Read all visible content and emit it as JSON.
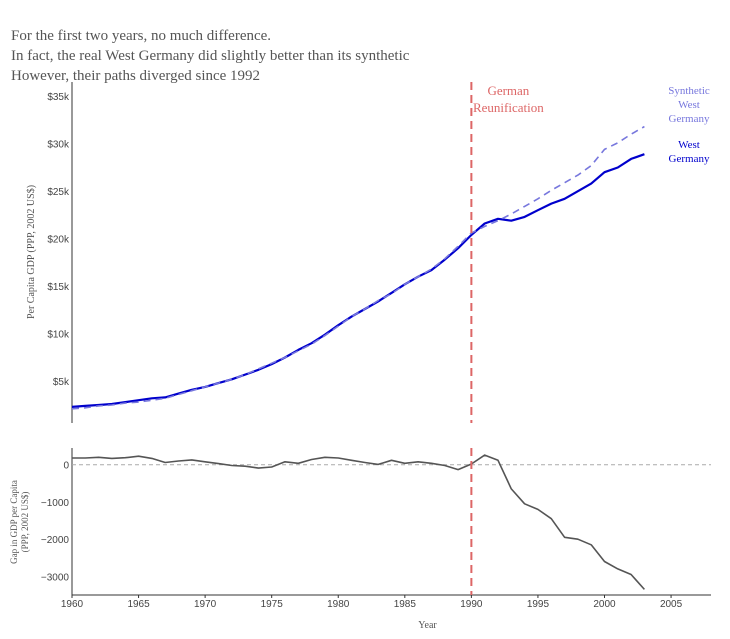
{
  "title_lines": [
    "For the first two years, no much difference.",
    "In fact, the real West Germany did slightly better than its synthetic",
    "However, their paths diverged since 1992"
  ],
  "chart_data": [
    {
      "type": "line",
      "xlabel": "",
      "ylabel": "Per Capita GDP (PPP, 2002 US$)",
      "xlim": [
        1960,
        2008
      ],
      "ylim": [
        600,
        36500
      ],
      "yticks": [
        5000,
        10000,
        15000,
        20000,
        25000,
        30000,
        35000
      ],
      "ytick_labels": [
        "$5k",
        "$10k",
        "$15k",
        "$20k",
        "$25k",
        "$30k",
        "$35k"
      ],
      "x": [
        1960,
        1961,
        1962,
        1963,
        1964,
        1965,
        1966,
        1967,
        1968,
        1969,
        1970,
        1971,
        1972,
        1973,
        1974,
        1975,
        1976,
        1977,
        1978,
        1979,
        1980,
        1981,
        1982,
        1983,
        1984,
        1985,
        1986,
        1987,
        1988,
        1989,
        1990,
        1991,
        1992,
        1993,
        1994,
        1995,
        1996,
        1997,
        1998,
        1999,
        2000,
        2001,
        2002,
        2003
      ],
      "series": [
        {
          "name": "West Germany",
          "color": "#0000cc",
          "dash": "solid",
          "values": [
            2300,
            2400,
            2500,
            2600,
            2800,
            3000,
            3200,
            3300,
            3700,
            4100,
            4400,
            4800,
            5200,
            5700,
            6200,
            6800,
            7500,
            8300,
            9000,
            9900,
            10900,
            11800,
            12600,
            13400,
            14300,
            15200,
            16000,
            16700,
            17800,
            19000,
            20400,
            21600,
            22100,
            21900,
            22300,
            23000,
            23700,
            24200,
            25000,
            25800,
            27000,
            27500,
            28400,
            28900
          ]
        },
        {
          "name": "Synthetic West Germany",
          "color": "#7777dd",
          "dash": "dashed",
          "values": [
            2100,
            2200,
            2400,
            2500,
            2700,
            2800,
            3000,
            3200,
            3600,
            4000,
            4400,
            4800,
            5200,
            5700,
            6300,
            6900,
            7500,
            8200,
            8900,
            9800,
            10800,
            11800,
            12600,
            13500,
            14200,
            15200,
            16000,
            16800,
            17900,
            19200,
            20600,
            21300,
            21900,
            22600,
            23400,
            24200,
            25100,
            25900,
            26700,
            27700,
            29400,
            30100,
            31000,
            31800
          ]
        }
      ],
      "annotations": [
        {
          "text_lines": [
            "German",
            "Reunification"
          ],
          "x": 1990,
          "color": "#dd6666"
        }
      ],
      "end_labels": [
        {
          "text_lines": [
            "Synthetic",
            "West",
            "Germany"
          ],
          "color": "#7777dd"
        },
        {
          "text_lines": [
            "West",
            "Germany"
          ],
          "color": "#0000cc"
        }
      ],
      "vline": {
        "x": 1990,
        "color": "#dd6666",
        "dash": "dashed"
      },
      "grid": false
    },
    {
      "type": "line",
      "xlabel": "Year",
      "ylabel_lines": [
        "Gap in GDP per Capita",
        "(PPP, 2002 US$)"
      ],
      "xlim": [
        1960,
        2008
      ],
      "ylim": [
        -3500,
        450
      ],
      "xticks": [
        1960,
        1965,
        1970,
        1975,
        1980,
        1985,
        1990,
        1995,
        2000,
        2005
      ],
      "xtick_labels": [
        "1960",
        "1965",
        "1970",
        "1975",
        "1980",
        "1985",
        "1990",
        "1995",
        "2000",
        "2005"
      ],
      "yticks": [
        0,
        -1000,
        -2000,
        -3000
      ],
      "ytick_labels": [
        "0",
        "−1000",
        "−2000",
        "−3000"
      ],
      "x": [
        1960,
        1961,
        1962,
        1963,
        1964,
        1965,
        1966,
        1967,
        1968,
        1969,
        1970,
        1971,
        1972,
        1973,
        1974,
        1975,
        1976,
        1977,
        1978,
        1979,
        1980,
        1981,
        1982,
        1983,
        1984,
        1985,
        1986,
        1987,
        1988,
        1989,
        1990,
        1991,
        1992,
        1993,
        1994,
        1995,
        1996,
        1997,
        1998,
        1999,
        2000,
        2001,
        2002,
        2003
      ],
      "series": [
        {
          "name": "",
          "color": "#555555",
          "dash": "solid",
          "values": [
            180,
            180,
            200,
            170,
            190,
            230,
            170,
            60,
            100,
            130,
            80,
            30,
            -20,
            -40,
            -90,
            -60,
            80,
            40,
            140,
            200,
            180,
            120,
            60,
            10,
            120,
            40,
            80,
            40,
            -20,
            -130,
            20,
            260,
            120,
            -650,
            -1050,
            -1200,
            -1450,
            -1950,
            -2000,
            -2150,
            -2600,
            -2800,
            -2950,
            -3350
          ]
        }
      ],
      "reference_line": {
        "y": 0,
        "color": "#aaaaaa",
        "dash": "dashed"
      },
      "vline": {
        "x": 1990,
        "color": "#dd6666",
        "dash": "dashed"
      },
      "grid": false
    }
  ]
}
